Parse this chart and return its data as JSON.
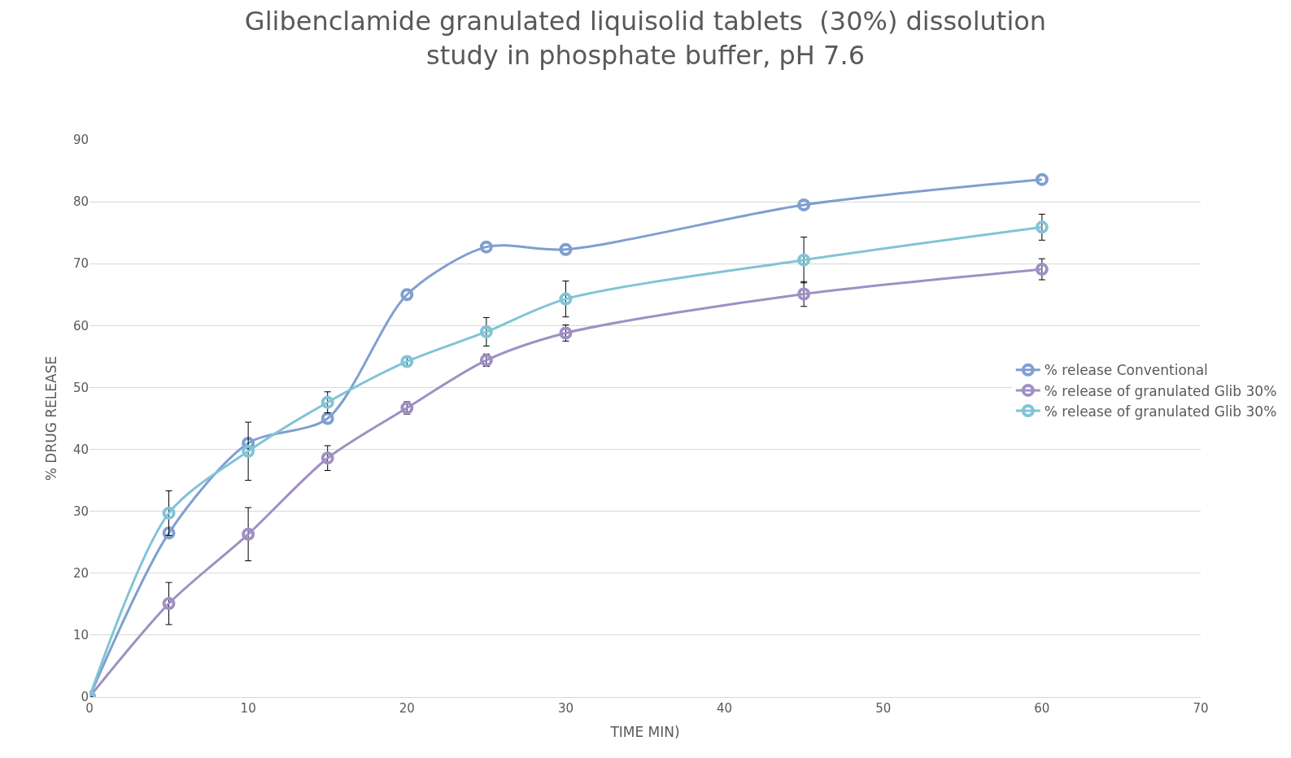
{
  "chart_data": {
    "type": "line",
    "title": "Glibenclamide granulated liquisolid tablets  (30%) dissolution\nstudy in phosphate buffer, pH 7.6",
    "xlabel": "TIME MIN)",
    "ylabel": "% DRUG RELEASE",
    "x": [
      0,
      5,
      10,
      15,
      20,
      25,
      30,
      45,
      60
    ],
    "series": [
      {
        "name": "% release Conventional",
        "color": "#7f9fcf",
        "values": [
          0,
          26.5,
          41,
          45,
          65,
          72.7,
          72.3,
          79.5,
          83.6
        ]
      },
      {
        "name": "% release of granulated Glib 30%",
        "color": "#a08fc4",
        "values": [
          0,
          15.1,
          26.3,
          38.6,
          46.7,
          54.4,
          58.8,
          65.1,
          69.1
        ],
        "errors": [
          null,
          3.4,
          4.3,
          2,
          1,
          1,
          1.3,
          2,
          1.7
        ]
      },
      {
        "name": "% release of granulated Glib 30%",
        "color": "#80c4d6",
        "values": [
          0,
          29.7,
          39.7,
          47.6,
          54.2,
          59,
          64.3,
          70.6,
          75.9
        ],
        "errors": [
          null,
          3.6,
          4.7,
          1.7,
          0.7,
          2.3,
          2.9,
          3.7,
          2.1
        ]
      }
    ],
    "xlim": [
      0,
      70
    ],
    "xticks": [
      0,
      10,
      20,
      30,
      40,
      50,
      60,
      70
    ],
    "ylim": [
      0,
      90
    ],
    "yticks": [
      0,
      10,
      20,
      30,
      40,
      50,
      60,
      70,
      80,
      90
    ],
    "grid": "y",
    "legend": "right",
    "marker": "circle",
    "line_style": "solid"
  }
}
